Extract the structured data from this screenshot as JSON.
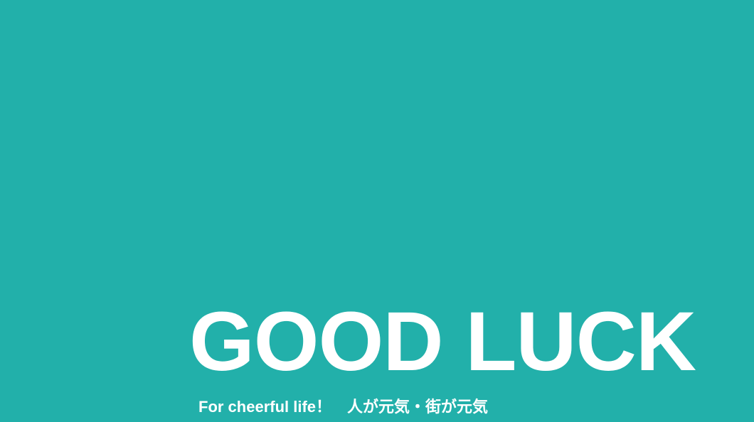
{
  "hero": {
    "background_color": "#22b0aa",
    "text_color": "#ffffff",
    "headline": "GOOD LUCK",
    "tagline": "For cheerful life！　人が元気・街が元気"
  }
}
